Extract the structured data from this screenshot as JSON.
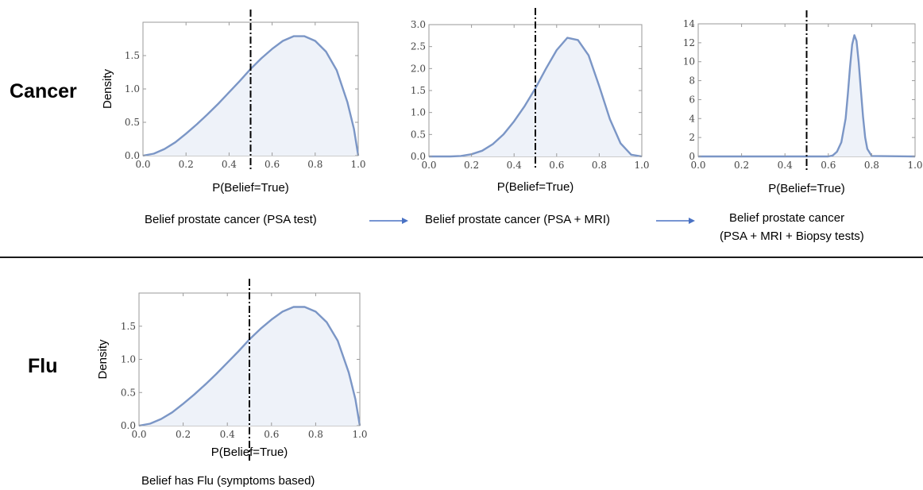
{
  "rows": {
    "cancer": {
      "label": "Cancer"
    },
    "flu": {
      "label": "Flu"
    }
  },
  "captions": {
    "psa": "Belief prostate cancer (PSA test)",
    "psa_mri": "Belief prostate cancer (PSA + MRI)",
    "biopsy_line1": "Belief prostate cancer",
    "biopsy_line2": "(PSA + MRI + Biopsy tests)",
    "flu": "Belief has Flu (symptoms based)"
  },
  "colors": {
    "curve": "#7b96c6",
    "fill": "#eef2f9",
    "frame": "#9a9a9a",
    "arrow": "#4a72c4",
    "threshold": "#000000"
  },
  "chart_data": [
    {
      "id": "cancer-psa",
      "type": "area",
      "xlabel": "P(Belief=True)",
      "ylabel": "Density",
      "xlim": [
        0,
        1
      ],
      "ylim": [
        0,
        2.0
      ],
      "xticks": [
        "0.0",
        "0.2",
        "0.4",
        "0.6",
        "0.8",
        "1.0"
      ],
      "yticks": [
        "0.0",
        "0.5",
        "1.0",
        "1.5"
      ],
      "threshold_x": 0.5,
      "x": [
        0,
        0.05,
        0.1,
        0.15,
        0.2,
        0.25,
        0.3,
        0.35,
        0.4,
        0.45,
        0.5,
        0.55,
        0.6,
        0.65,
        0.7,
        0.75,
        0.8,
        0.85,
        0.9,
        0.95,
        0.98,
        1.0
      ],
      "y": [
        0,
        0.03,
        0.1,
        0.2,
        0.33,
        0.47,
        0.62,
        0.78,
        0.95,
        1.12,
        1.3,
        1.46,
        1.6,
        1.72,
        1.79,
        1.79,
        1.72,
        1.56,
        1.28,
        0.8,
        0.4,
        0
      ]
    },
    {
      "id": "cancer-psa-mri",
      "type": "area",
      "xlabel": "P(Belief=True)",
      "ylabel": "",
      "xlim": [
        0,
        1
      ],
      "ylim": [
        0,
        3.0
      ],
      "xticks": [
        "0.0",
        "0.2",
        "0.4",
        "0.6",
        "0.8",
        "1.0"
      ],
      "yticks": [
        "0.0",
        "0.5",
        "1.0",
        "1.5",
        "2.0",
        "2.5",
        "3.0"
      ],
      "threshold_x": 0.5,
      "x": [
        0,
        0.1,
        0.15,
        0.2,
        0.25,
        0.3,
        0.35,
        0.4,
        0.45,
        0.5,
        0.55,
        0.6,
        0.65,
        0.7,
        0.75,
        0.8,
        0.85,
        0.9,
        0.95,
        1.0
      ],
      "y": [
        0,
        0.0,
        0.01,
        0.05,
        0.13,
        0.28,
        0.5,
        0.8,
        1.15,
        1.55,
        2.0,
        2.42,
        2.7,
        2.65,
        2.3,
        1.6,
        0.85,
        0.3,
        0.04,
        0
      ]
    },
    {
      "id": "cancer-biopsy",
      "type": "area",
      "xlabel": "P(Belief=True)",
      "ylabel": "",
      "xlim": [
        0,
        1
      ],
      "ylim": [
        0,
        14
      ],
      "xticks": [
        "0.0",
        "0.2",
        "0.4",
        "0.6",
        "0.8",
        "1.0"
      ],
      "yticks": [
        "0",
        "2",
        "4",
        "6",
        "8",
        "10",
        "12",
        "14"
      ],
      "threshold_x": 0.5,
      "x": [
        0,
        0.6,
        0.62,
        0.64,
        0.66,
        0.68,
        0.69,
        0.7,
        0.71,
        0.72,
        0.73,
        0.74,
        0.75,
        0.76,
        0.77,
        0.78,
        0.8,
        1.0
      ],
      "y": [
        0,
        0,
        0.1,
        0.5,
        1.5,
        4.0,
        6.6,
        9.4,
        11.8,
        12.8,
        12.2,
        10.0,
        7.0,
        4.2,
        2.0,
        0.8,
        0.05,
        0
      ]
    },
    {
      "id": "flu-symptoms",
      "type": "area",
      "xlabel": "P(Belief=True)",
      "ylabel": "Density",
      "xlim": [
        0,
        1
      ],
      "ylim": [
        0,
        2.0
      ],
      "xticks": [
        "0.0",
        "0.2",
        "0.4",
        "0.6",
        "0.8",
        "1.0"
      ],
      "yticks": [
        "0.0",
        "0.5",
        "1.0",
        "1.5"
      ],
      "threshold_x": 0.5,
      "x": [
        0,
        0.05,
        0.1,
        0.15,
        0.2,
        0.25,
        0.3,
        0.35,
        0.4,
        0.45,
        0.5,
        0.55,
        0.6,
        0.65,
        0.7,
        0.75,
        0.8,
        0.85,
        0.9,
        0.95,
        0.98,
        1.0
      ],
      "y": [
        0,
        0.03,
        0.1,
        0.2,
        0.33,
        0.47,
        0.62,
        0.78,
        0.95,
        1.12,
        1.3,
        1.46,
        1.6,
        1.72,
        1.79,
        1.79,
        1.72,
        1.56,
        1.28,
        0.8,
        0.4,
        0
      ]
    }
  ]
}
